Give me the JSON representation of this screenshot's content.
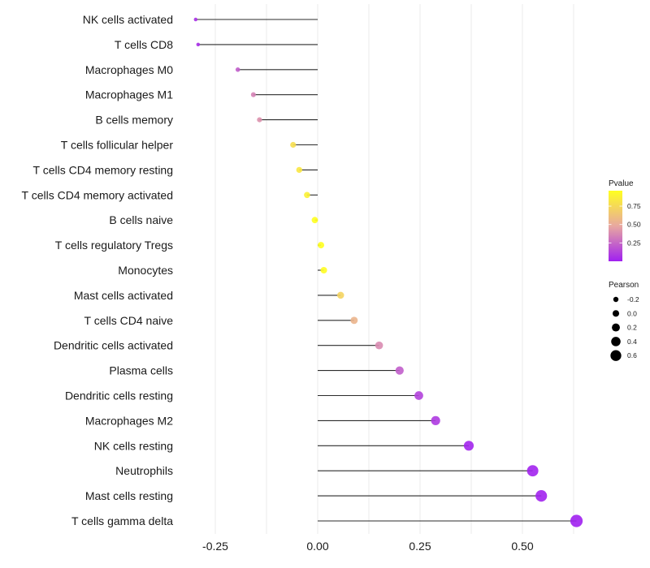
{
  "chart_data": {
    "type": "lollipop",
    "title": "",
    "xlabel": "",
    "ylabel": "",
    "xlim": [
      -0.3,
      0.64
    ],
    "x_ticks": [
      -0.25,
      0.0,
      0.25,
      0.5
    ],
    "x_tick_labels": [
      "-0.25",
      "0.00",
      "0.25",
      "0.50"
    ],
    "grid": true,
    "categories": [
      "NK cells activated",
      "T cells CD8",
      "Macrophages M0",
      "Macrophages M1",
      "B cells memory",
      "T cells follicular helper",
      "T cells CD4 memory resting",
      "T cells CD4 memory activated",
      "B cells naive",
      "T cells regulatory  Tregs ",
      "Monocytes",
      "Mast cells activated",
      "T cells CD4 naive",
      "Dendritic cells activated",
      "Plasma cells",
      "Dendritic cells resting",
      "Macrophages M2",
      "NK cells resting",
      "Neutrophils",
      "Mast cells resting",
      "T cells gamma delta"
    ],
    "values": [
      -0.298,
      -0.292,
      -0.195,
      -0.157,
      -0.142,
      -0.06,
      -0.045,
      -0.026,
      -0.007,
      0.008,
      0.015,
      0.056,
      0.089,
      0.15,
      0.2,
      0.247,
      0.288,
      0.369,
      0.525,
      0.546,
      0.632
    ],
    "pvalues": [
      0.06,
      0.05,
      0.22,
      0.35,
      0.4,
      0.78,
      0.83,
      0.88,
      0.96,
      0.96,
      0.95,
      0.72,
      0.55,
      0.38,
      0.22,
      0.12,
      0.09,
      0.02,
      0.01,
      0.01,
      0.0
    ],
    "color_legend": {
      "title": "Pvalue",
      "ticks": [
        0.25,
        0.5,
        0.75
      ],
      "tick_labels": [
        "0.25",
        "0.50",
        "0.75"
      ],
      "range": [
        0.0,
        0.96
      ],
      "low_color": "#A020F0",
      "mid_color": "#E8A8A0",
      "high_color": "#FFFF20"
    },
    "size_legend": {
      "title": "Pearson",
      "values": [
        -0.2,
        0.0,
        0.2,
        0.4,
        0.6
      ],
      "labels": [
        "-0.2",
        "0.0",
        "0.2",
        "0.4",
        "0.6"
      ]
    },
    "legend_position": "right"
  }
}
